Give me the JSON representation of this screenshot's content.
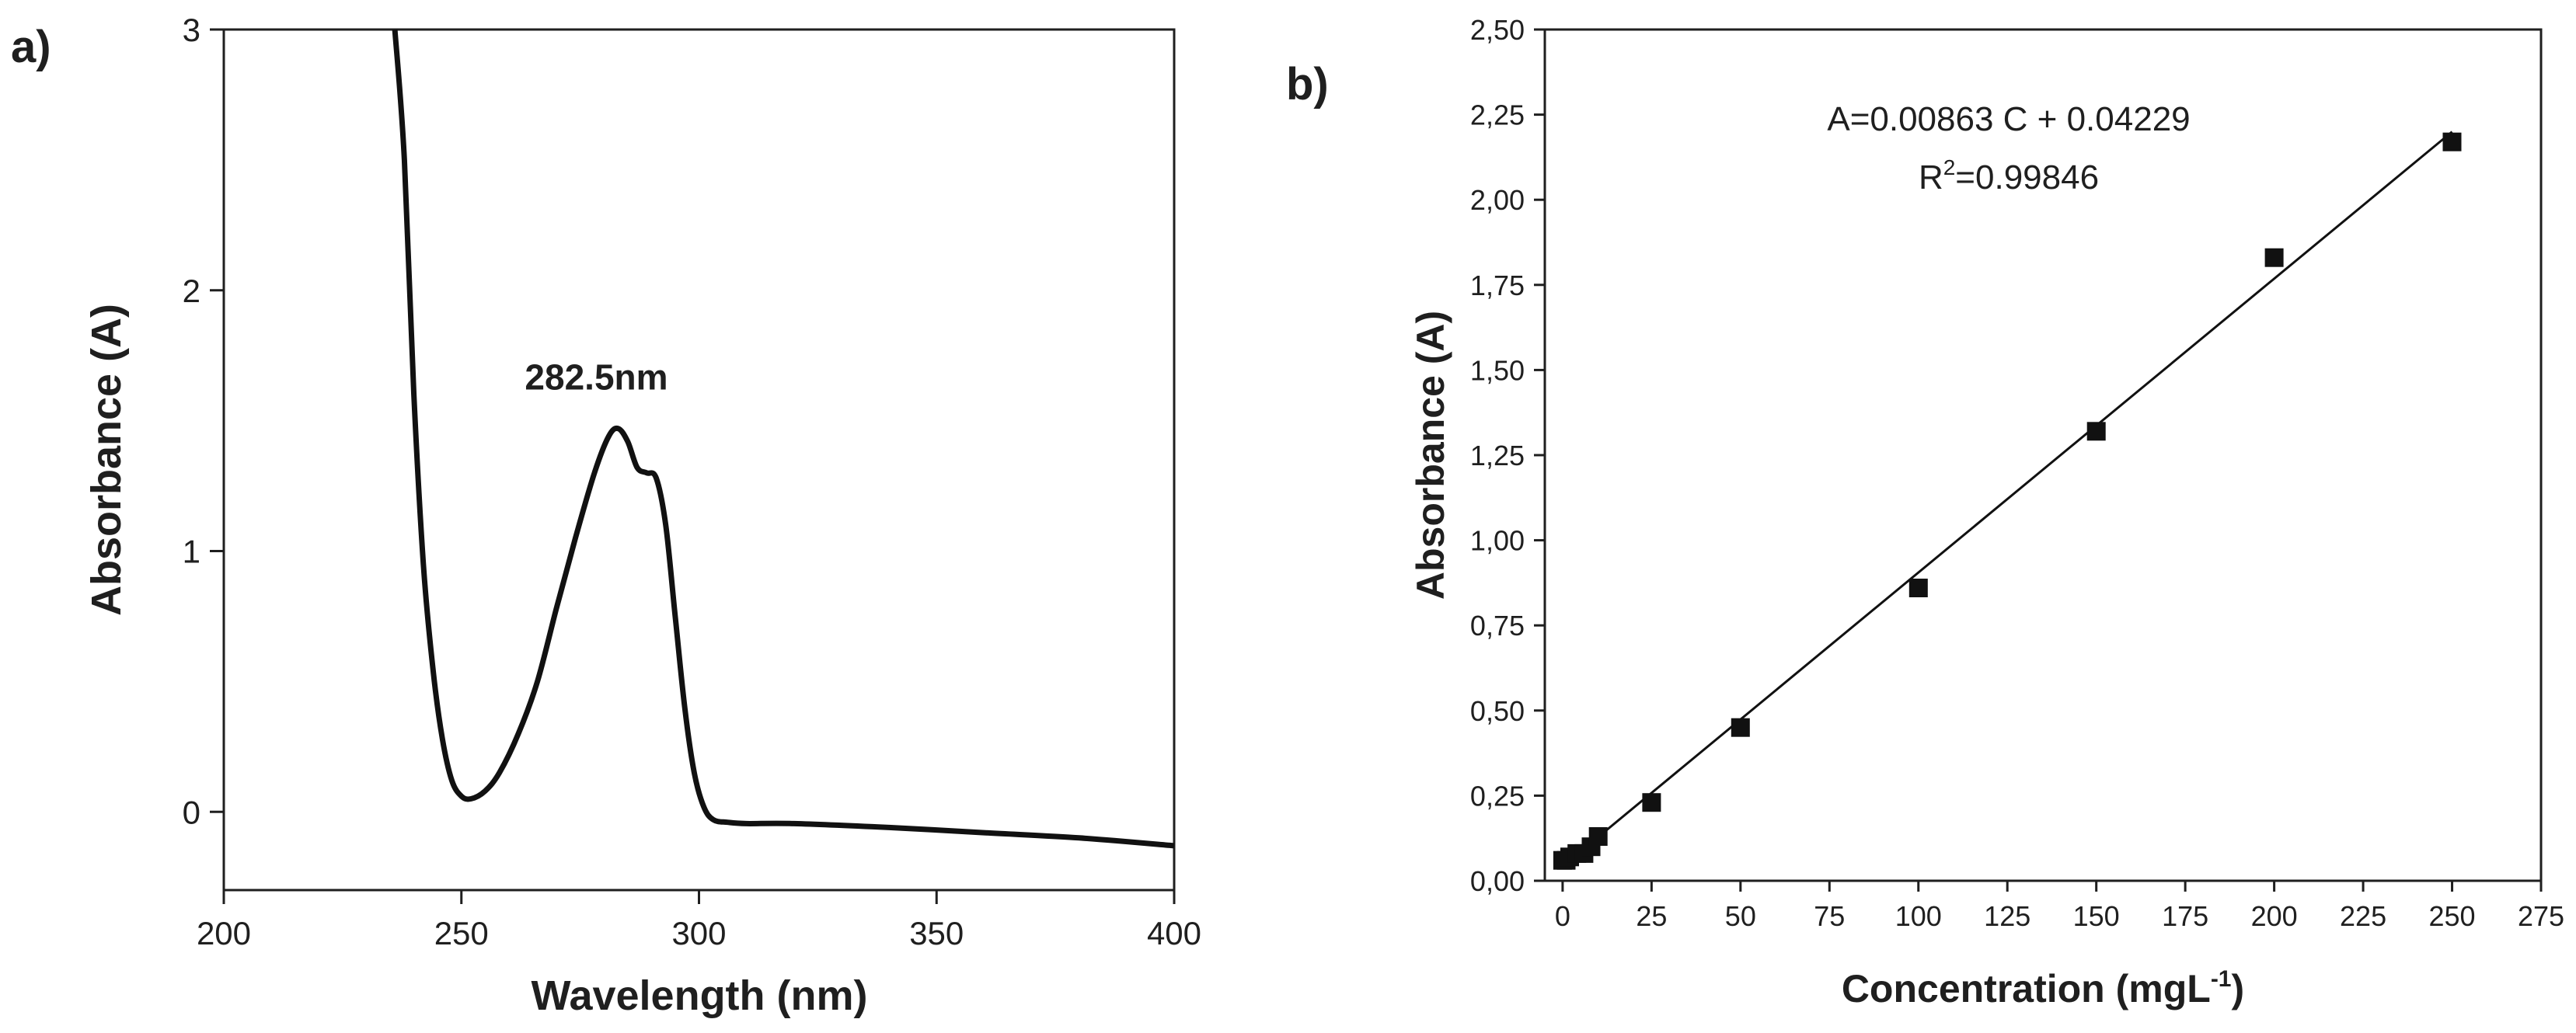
{
  "chart_data": [
    {
      "panel_label": "a)",
      "type": "line",
      "xlabel": "Wavelength (nm)",
      "ylabel": "Absorbance (A)",
      "xlim": [
        200,
        400
      ],
      "ylim": [
        -0.3,
        3
      ],
      "xticks": [
        200,
        250,
        300,
        350,
        400
      ],
      "yticks": [
        0,
        1,
        2,
        3
      ],
      "annotation": "282.5nm",
      "annotation_point": [
        282.5,
        1.47
      ],
      "grid": false,
      "series": [
        {
          "x": [
            236,
            238,
            240,
            242,
            244,
            246,
            248,
            250,
            252,
            255,
            258,
            262,
            266,
            270,
            274,
            278,
            281,
            283,
            285,
            287,
            289,
            291,
            293,
            295,
            297,
            299,
            301,
            303,
            306,
            310,
            320,
            340,
            360,
            380,
            400
          ],
          "y": [
            3.0,
            2.5,
            1.6,
            0.95,
            0.55,
            0.28,
            0.12,
            0.06,
            0.05,
            0.08,
            0.15,
            0.3,
            0.5,
            0.78,
            1.05,
            1.3,
            1.44,
            1.47,
            1.42,
            1.32,
            1.3,
            1.28,
            1.1,
            0.75,
            0.4,
            0.15,
            0.02,
            -0.03,
            -0.04,
            -0.045,
            -0.045,
            -0.06,
            -0.08,
            -0.1,
            -0.13
          ]
        }
      ]
    },
    {
      "panel_label": "b)",
      "type": "scatter",
      "xlabel": "Concentration (mgL",
      "xlabel_sup": "-1",
      "xlabel_end": ")",
      "ylabel": "Absorbance (A)",
      "xlim": [
        -5,
        275
      ],
      "ylim": [
        0,
        2.5
      ],
      "xticks": [
        "0",
        "25",
        "50",
        "75",
        "100",
        "125",
        "150",
        "175",
        "200",
        "225",
        "250",
        "275"
      ],
      "yticks": [
        "0,00",
        "0,25",
        "0,50",
        "0,75",
        "1,00",
        "1,25",
        "1,50",
        "1,75",
        "2,00",
        "2,25",
        "2,50"
      ],
      "grid": false,
      "equation": "A=0.00863 C + 0.04229",
      "r2_prefix": "R",
      "r2_sup": "2",
      "r2_value": "=0.99846",
      "fit": {
        "slope": 0.00863,
        "intercept": 0.04229,
        "x_range": [
          0,
          250
        ]
      },
      "series": [
        {
          "x": [
            0,
            1,
            2,
            4,
            6,
            8,
            10,
            25,
            50,
            100,
            150,
            200,
            250
          ],
          "y": [
            0.06,
            0.06,
            0.07,
            0.08,
            0.08,
            0.1,
            0.13,
            0.23,
            0.45,
            0.86,
            1.32,
            1.83,
            2.17
          ]
        }
      ]
    }
  ]
}
